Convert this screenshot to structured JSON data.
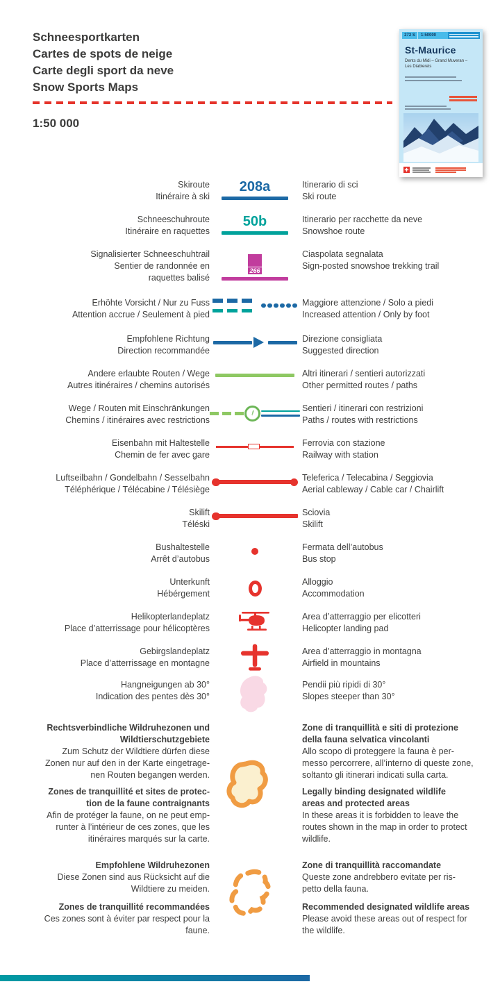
{
  "header": {
    "title_lines": [
      "Schneesportkarten",
      "Cartes de spots de neige",
      "Carte degli sport da neve",
      "Snow Sports Maps"
    ],
    "scale": "1:50 000"
  },
  "cover": {
    "sheet_number": "272 S",
    "sheet_scale": "1:50000",
    "title": "St-Maurice",
    "subtitle_lines": [
      "Dents du Midi – Grand Muveran –",
      "Les Diablerets"
    ]
  },
  "colors": {
    "blue": "#1c69a5",
    "teal": "#00a29b",
    "magenta": "#c13c9d",
    "green": "#8ec863",
    "red": "#e6332d",
    "pink": "#f9d9e5",
    "orange": "#f09c43",
    "cream": "#fbf0cf"
  },
  "legend_rows": [
    {
      "label": "208a",
      "left": [
        "Skiroute",
        "Itinéraire à ski"
      ],
      "right": [
        "Itinerario di sci",
        "Ski route"
      ]
    },
    {
      "label": "50b",
      "left": [
        "Schneeschuhroute",
        "Itinéraire en raquettes"
      ],
      "right": [
        "Itinerario per racchette da neve",
        "Snowshoe route"
      ]
    },
    {
      "label": "266",
      "left": [
        "Signalisierter Schneeschuhtrail",
        "Sentier de randonnée en",
        "raquettes balisé"
      ],
      "right": [
        "Ciaspolata segnalata",
        "Sign-posted snowshoe trekking trail"
      ]
    },
    {
      "left": [
        "Erhöhte Vorsicht / Nur zu Fuss",
        "Attention accrue / Seulement à pied"
      ],
      "right": [
        "Maggiore attenzione / Solo a piedi",
        "Increased attention / Only by foot"
      ]
    },
    {
      "left": [
        "Empfohlene Richtung",
        "Direction recommandée"
      ],
      "right": [
        "Direzione consigliata",
        "Suggested direction"
      ]
    },
    {
      "left": [
        "Andere erlaubte Routen / Wege",
        "Autres itinéraires / chemins autorisés"
      ],
      "right": [
        "Altri itinerari / sentieri autorizzati",
        "Other permitted routes / paths"
      ]
    },
    {
      "left": [
        "Wege / Routen mit Einschränkungen",
        "Chemins / itinéraires avec restrictions"
      ],
      "right": [
        "Sentieri / itinerari con restrizioni",
        "Paths / routes with restrictions"
      ]
    },
    {
      "left": [
        "Eisenbahn mit Haltestelle",
        "Chemin de fer avec gare"
      ],
      "right": [
        "Ferrovia con stazione",
        "Railway with station"
      ]
    },
    {
      "left": [
        "Luftseilbahn / Gondelbahn / Sesselbahn",
        "Téléphérique / Télécabine / Télésiège"
      ],
      "right": [
        "Teleferica / Telecabina / Seggiovia",
        "Aerial cableway / Cable car / Chairlift"
      ]
    },
    {
      "left": [
        "Skilift",
        "Téléski"
      ],
      "right": [
        "Sciovia",
        "Skilift"
      ]
    },
    {
      "left": [
        "Bushaltestelle",
        "Arrêt d’autobus"
      ],
      "right": [
        "Fermata dell’autobus",
        "Bus stop"
      ]
    },
    {
      "left": [
        "Unterkunft",
        "Hébérgement"
      ],
      "right": [
        "Alloggio",
        "Accommodation"
      ]
    },
    {
      "left": [
        "Helikopterlandeplatz",
        "Place d’atterrissage pour hélicoptères"
      ],
      "right": [
        "Area d’atterraggio per elicotteri",
        "Helicopter landing pad"
      ]
    },
    {
      "left": [
        "Gebirgslandeplatz",
        "Place d’atterrissage en montagne"
      ],
      "right": [
        "Area d’atterraggio in montagna",
        "Airfield in mountains"
      ]
    },
    {
      "left": [
        "Hangneigungen ab 30°",
        "Indication des pentes dès 30°"
      ],
      "right": [
        "Pendii più ripidi di 30°",
        "Slopes steeper than 30°"
      ]
    }
  ],
  "wildlife_binding": {
    "de_heading": [
      "Rechtsverbindliche Wildruhezonen und",
      "Wildtierschutzgebiete"
    ],
    "de_body": [
      "Zum Schutz der Wildtiere dürfen diese",
      "Zonen nur auf den in der Karte eingetrage-",
      "nen Routen begangen werden."
    ],
    "fr_heading": [
      "Zones de tranquillité et sites de protec-",
      "tion de la faune contraignants"
    ],
    "fr_body": [
      "Afin de protéger la faune, on ne peut emp-",
      "runter à l’intérieur de ces zones, que les",
      "itinéraires marqués sur la carte."
    ],
    "it_heading": [
      "Zone di tranquillità e siti di protezione",
      "della fauna selvatica vincolanti"
    ],
    "it_body": [
      "Allo scopo di proteggere la fauna è per-",
      "messo percorrere, all’interno di queste zone,",
      "soltanto gli itinerari indicati sulla carta."
    ],
    "en_heading": [
      "Legally binding designated wildlife",
      "areas and protected areas"
    ],
    "en_body": [
      "In these areas it is forbidden to leave the",
      "routes shown in the map in order to protect",
      "wildlife."
    ]
  },
  "wildlife_recommended": {
    "de_heading": [
      "Empfohlene Wildruhezonen"
    ],
    "de_body": [
      "Diese Zonen sind aus Rücksicht auf die",
      "Wildtiere zu meiden."
    ],
    "fr_heading": [
      "Zones de tranquillité recommandées"
    ],
    "fr_body": [
      "Ces zones sont à éviter par respect pour la",
      "faune."
    ],
    "it_heading": [
      "Zone di tranquillità raccomandate"
    ],
    "it_body": [
      "Queste zone andrebbero evitate per ris-",
      "petto della fauna."
    ],
    "en_heading": [
      "Recommended designated wildlife areas"
    ],
    "en_body": [
      "Please avoid these areas out of respect for",
      "the wildlife."
    ]
  }
}
